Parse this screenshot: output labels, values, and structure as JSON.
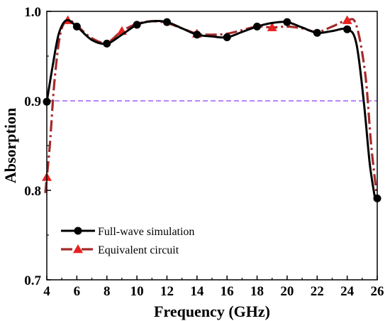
{
  "chart_data": {
    "type": "line",
    "xlabel": "Frequency (GHz)",
    "ylabel": "Absorption",
    "xlim": [
      4,
      26
    ],
    "ylim": [
      0.7,
      1.0
    ],
    "x_ticks": [
      "4",
      "6",
      "8",
      "10",
      "12",
      "14",
      "16",
      "18",
      "20",
      "22",
      "24",
      "26"
    ],
    "y_ticks": [
      "0.7",
      "0.8",
      "0.9",
      "1.0"
    ],
    "reference_line": {
      "y": 0.9,
      "color": "#8a3ffc"
    },
    "legend_position": "bottom-left",
    "series": [
      {
        "name": "Full-wave simulation",
        "color": "#000000",
        "marker": "circle",
        "points": [
          [
            4,
            0.899
          ],
          [
            4.4,
            0.94
          ],
          [
            4.8,
            0.975
          ],
          [
            5.3,
            0.99
          ],
          [
            6,
            0.983
          ],
          [
            7,
            0.968
          ],
          [
            8,
            0.964
          ],
          [
            9,
            0.974
          ],
          [
            10,
            0.985
          ],
          [
            11,
            0.989
          ],
          [
            12,
            0.988
          ],
          [
            13,
            0.981
          ],
          [
            14,
            0.974
          ],
          [
            15,
            0.972
          ],
          [
            16,
            0.971
          ],
          [
            17,
            0.977
          ],
          [
            18,
            0.983
          ],
          [
            19,
            0.987
          ],
          [
            20,
            0.988
          ],
          [
            21,
            0.982
          ],
          [
            22,
            0.976
          ],
          [
            23,
            0.978
          ],
          [
            24,
            0.98
          ],
          [
            24.6,
            0.965
          ],
          [
            25.1,
            0.9
          ],
          [
            25.5,
            0.83
          ],
          [
            25.85,
            0.791
          ]
        ],
        "marker_x": [
          4,
          6,
          8,
          10,
          12,
          14,
          16,
          18,
          20,
          22,
          24,
          26
        ]
      },
      {
        "name": "Equivalent circuit",
        "color": "#a52a2a",
        "marker": "triangle",
        "points": [
          [
            3.9,
            0.797
          ],
          [
            4.2,
            0.85
          ],
          [
            4.5,
            0.92
          ],
          [
            4.9,
            0.975
          ],
          [
            5.4,
            0.99
          ],
          [
            6,
            0.984
          ],
          [
            7,
            0.97
          ],
          [
            8,
            0.965
          ],
          [
            9,
            0.978
          ],
          [
            10,
            0.986
          ],
          [
            11,
            0.989
          ],
          [
            12,
            0.987
          ],
          [
            13,
            0.981
          ],
          [
            14,
            0.975
          ],
          [
            15,
            0.974
          ],
          [
            16,
            0.975
          ],
          [
            17,
            0.979
          ],
          [
            18,
            0.983
          ],
          [
            19,
            0.982
          ],
          [
            20,
            0.983
          ],
          [
            21,
            0.981
          ],
          [
            22,
            0.977
          ],
          [
            23,
            0.983
          ],
          [
            24,
            0.99
          ],
          [
            24.6,
            0.985
          ],
          [
            25.2,
            0.93
          ],
          [
            25.6,
            0.85
          ],
          [
            26,
            0.79
          ]
        ],
        "marker_x": [
          4,
          5.4,
          9,
          14,
          19,
          24
        ]
      }
    ]
  }
}
